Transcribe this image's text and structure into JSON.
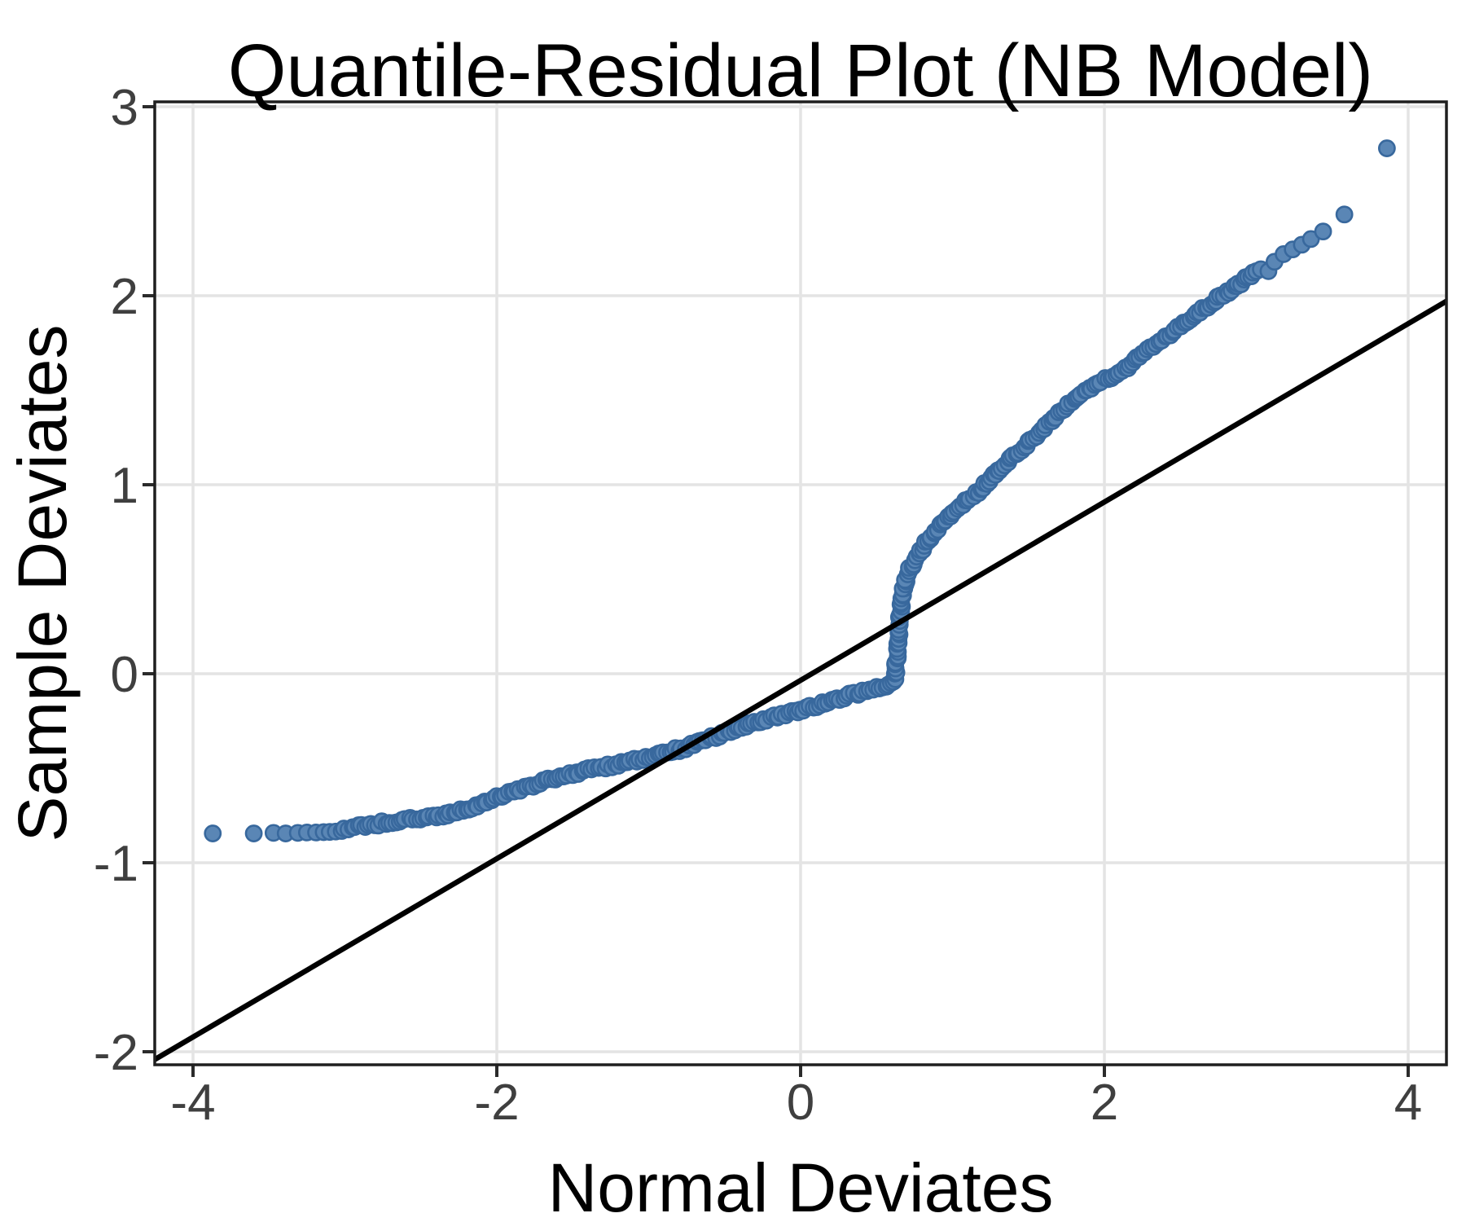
{
  "chart_data": {
    "type": "scatter",
    "title": "Quantile-Residual Plot (NB Model)",
    "xlabel": "Normal Deviates",
    "ylabel": "Sample Deviates",
    "x_ticks": [
      -4,
      -2,
      0,
      2,
      4
    ],
    "y_ticks": [
      3,
      2,
      1,
      0,
      -1,
      -2
    ],
    "xlim": [
      -4.25,
      4.25
    ],
    "ylim": [
      -2.07,
      3.03
    ],
    "grid": "major",
    "legend": "none",
    "reference_line": {
      "slope": 0.472,
      "intercept": -0.035
    },
    "band_path": [
      [
        -3.02,
        -0.825
      ],
      [
        -3.0,
        -0.82
      ],
      [
        -2.8,
        -0.795
      ],
      [
        -2.6,
        -0.775
      ],
      [
        -2.4,
        -0.755
      ],
      [
        -2.2,
        -0.72
      ],
      [
        -2.0,
        -0.655
      ],
      [
        -1.8,
        -0.6
      ],
      [
        -1.6,
        -0.545
      ],
      [
        -1.4,
        -0.51
      ],
      [
        -1.2,
        -0.48
      ],
      [
        -1.0,
        -0.44
      ],
      [
        -0.8,
        -0.4
      ],
      [
        -0.6,
        -0.345
      ],
      [
        -0.4,
        -0.285
      ],
      [
        -0.2,
        -0.235
      ],
      [
        0.0,
        -0.19
      ],
      [
        0.2,
        -0.145
      ],
      [
        0.35,
        -0.11
      ],
      [
        0.5,
        -0.075
      ],
      [
        0.6,
        -0.05
      ],
      [
        0.62,
        -0.02
      ],
      [
        0.635,
        0.1
      ],
      [
        0.65,
        0.25
      ],
      [
        0.665,
        0.38
      ],
      [
        0.68,
        0.46
      ],
      [
        0.7,
        0.52
      ],
      [
        0.74,
        0.585
      ],
      [
        0.79,
        0.65
      ],
      [
        0.85,
        0.715
      ],
      [
        0.92,
        0.78
      ],
      [
        1.0,
        0.855
      ],
      [
        1.1,
        0.92
      ],
      [
        1.2,
        0.99
      ],
      [
        1.3,
        1.07
      ],
      [
        1.45,
        1.19
      ],
      [
        1.6,
        1.3
      ],
      [
        1.75,
        1.41
      ],
      [
        1.9,
        1.51
      ],
      [
        2.0,
        1.555
      ],
      [
        2.1,
        1.59
      ],
      [
        2.2,
        1.66
      ],
      [
        2.32,
        1.74
      ],
      [
        2.45,
        1.81
      ],
      [
        2.6,
        1.9
      ],
      [
        2.75,
        1.985
      ],
      [
        2.9,
        2.07
      ],
      [
        3.0,
        2.13
      ]
    ],
    "left_tail_points": [
      [
        -3.87,
        -0.845
      ],
      [
        -3.6,
        -0.845
      ],
      [
        -3.47,
        -0.842
      ],
      [
        -3.39,
        -0.845
      ],
      [
        -3.31,
        -0.842
      ],
      [
        -3.25,
        -0.84
      ],
      [
        -3.19,
        -0.84
      ],
      [
        -3.14,
        -0.838
      ],
      [
        -3.1,
        -0.837
      ],
      [
        -3.06,
        -0.835
      ]
    ],
    "right_tail_points": [
      [
        3.03,
        2.14
      ],
      [
        3.08,
        2.13
      ],
      [
        3.12,
        2.18
      ],
      [
        3.18,
        2.22
      ],
      [
        3.24,
        2.245
      ],
      [
        3.3,
        2.27
      ],
      [
        3.36,
        2.3
      ],
      [
        3.44,
        2.34
      ],
      [
        3.58,
        2.43
      ],
      [
        3.86,
        2.78
      ]
    ]
  },
  "style": {
    "panel_background": "#FFFFFF",
    "grid_color": "#E4E4E4",
    "panel_border_color": "#1F1F1F",
    "tick_color": "#2B2B2B",
    "tick_label_color": "#3F3F3F",
    "text_color": "#000000",
    "point_fill": "#5A86B5",
    "point_stroke": "#38689D",
    "reference_line_color": "#000000"
  }
}
